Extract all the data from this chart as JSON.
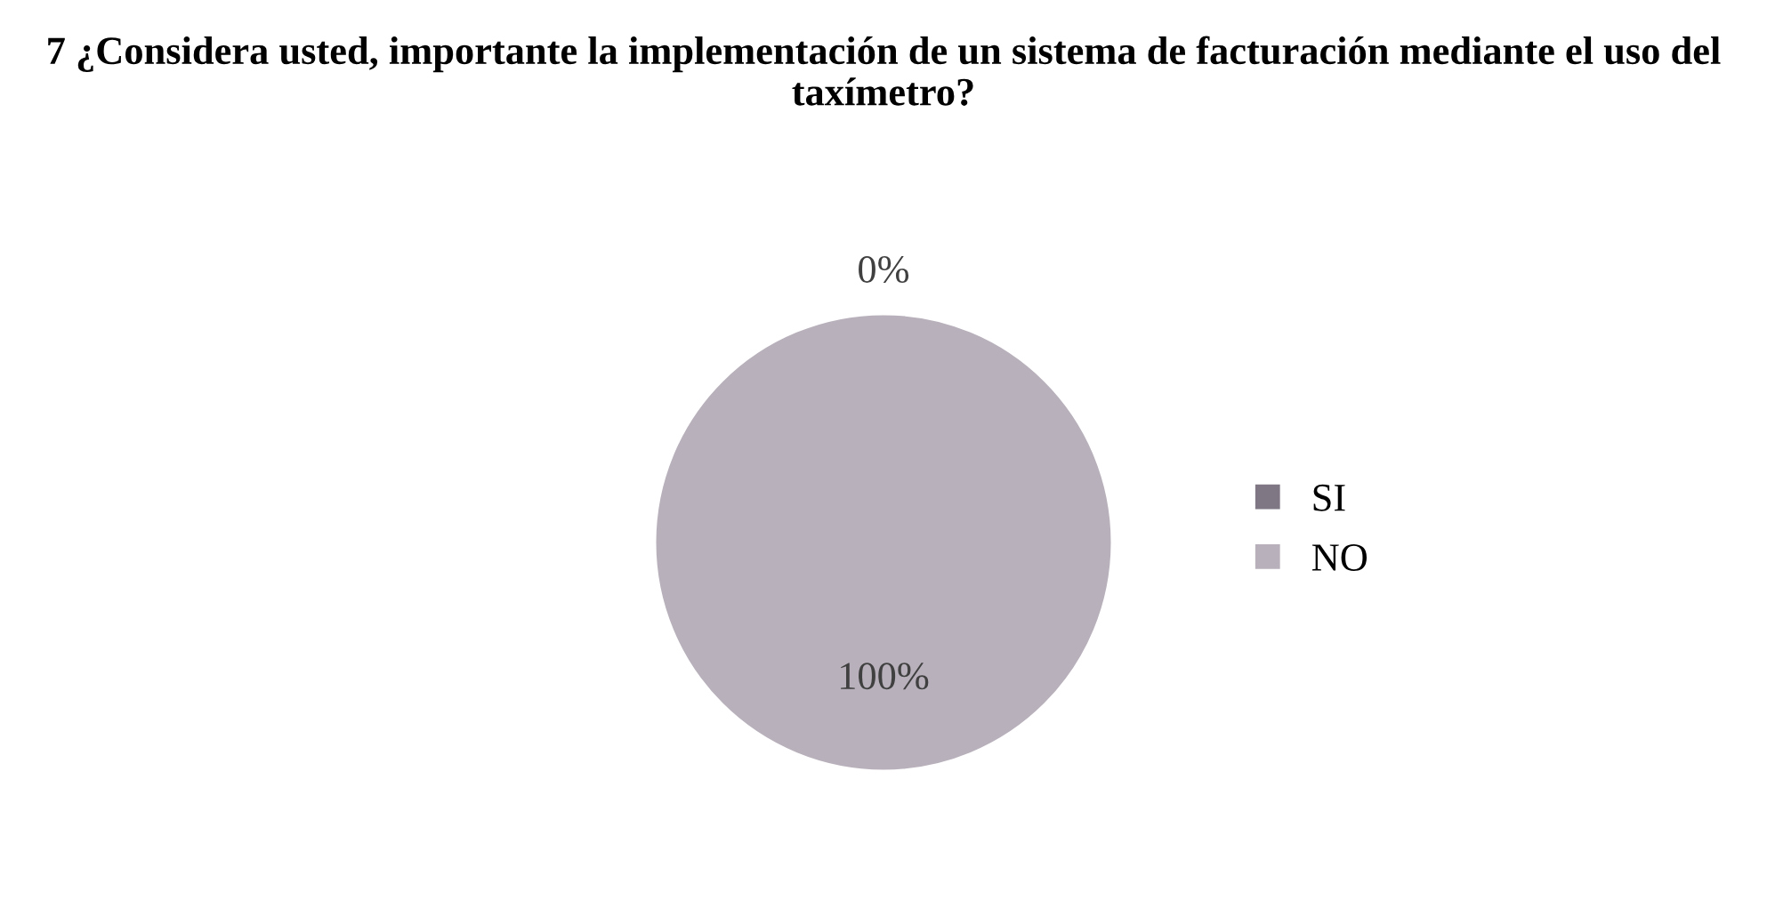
{
  "chart_data": {
    "type": "pie",
    "title": "7 ¿Considera usted, importante la implementación de un sistema de facturación mediante el uso del taxímetro?",
    "categories": [
      "SI",
      "NO"
    ],
    "values": [
      0,
      100
    ],
    "colors": [
      "#7f7784",
      "#b8b0bb"
    ],
    "value_labels": [
      "0%",
      "100%"
    ],
    "legend": "right"
  }
}
